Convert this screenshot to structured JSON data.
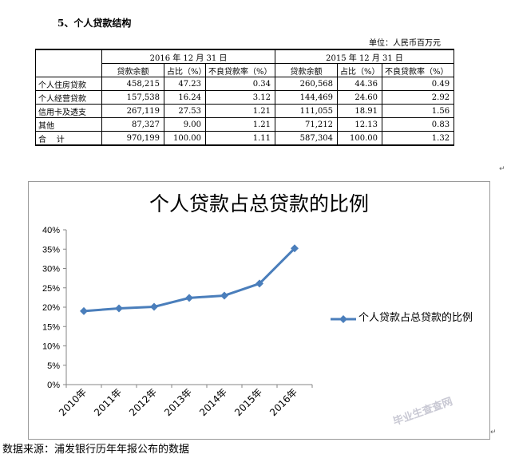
{
  "section_title": "5、个人贷款结构",
  "unit_label": "单位：人民币百万元",
  "table": {
    "period_headers": [
      "2016 年 12 月 31 日",
      "2015 年 12 月 31 日"
    ],
    "sub_headers": [
      "贷款余额",
      "占比（%）",
      "不良贷款率（%）",
      "贷款余额",
      "占比（%）",
      "不良贷款率（%）"
    ],
    "rows": [
      {
        "label": "个人住房贷款",
        "cells": [
          "458,215",
          "47.23",
          "0.34",
          "260,568",
          "44.36",
          "0.49"
        ]
      },
      {
        "label": "个人经营贷款",
        "cells": [
          "157,538",
          "16.24",
          "3.12",
          "144,469",
          "24.60",
          "2.92"
        ]
      },
      {
        "label": "信用卡及透支",
        "cells": [
          "267,119",
          "27.53",
          "1.21",
          "111,055",
          "18.91",
          "1.56"
        ]
      },
      {
        "label": "其他",
        "cells": [
          "87,327",
          "9.00",
          "1.21",
          "71,212",
          "12.13",
          "0.83"
        ]
      },
      {
        "label": "合    计",
        "cells": [
          "970,199",
          "100.00",
          "1.11",
          "587,304",
          "100.00",
          "1.32"
        ]
      }
    ]
  },
  "para_mark": "↵",
  "chart_data": {
    "type": "line",
    "title": "个人贷款占总贷款的比例",
    "categories": [
      "2010年",
      "2011年",
      "2012年",
      "2013年",
      "2014年",
      "2015年",
      "2016年"
    ],
    "series": [
      {
        "name": "个人贷款占总贷款的比例",
        "values": [
          19.0,
          19.7,
          20.1,
          22.4,
          23.0,
          26.1,
          35.2
        ],
        "color": "#4a7ebb"
      }
    ],
    "y_ticks": [
      "0%",
      "5%",
      "10%",
      "15%",
      "20%",
      "25%",
      "30%",
      "35%",
      "40%"
    ],
    "ylim": [
      0,
      40
    ],
    "grid": false,
    "legend_position": "right"
  },
  "source_note": "数据来源：浦发银行历年年报公布的数据",
  "watermark": "毕业生查查网"
}
